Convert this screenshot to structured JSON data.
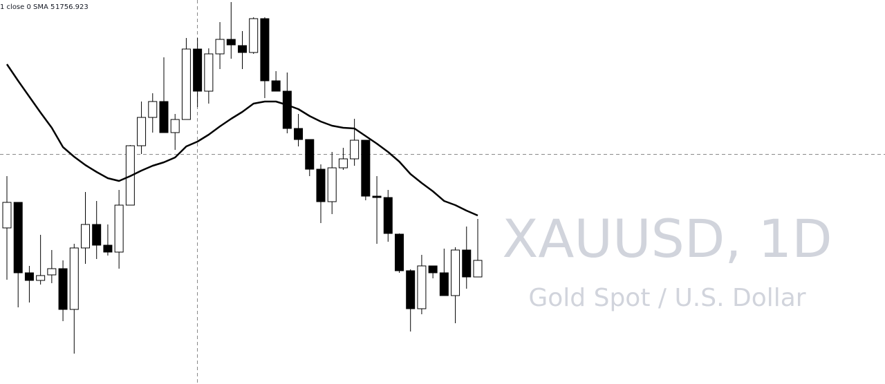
{
  "chart_data": {
    "type": "candlestick",
    "indicator": "1 close 0 SMA 5",
    "symbol": "XAUUSD, 1D",
    "description": "Gold Spot / U.S. Dollar",
    "ylim": [
      1695.92,
      1834.92
    ],
    "up_color": "#ffffff",
    "down_color": "#000000",
    "line_color": "#000000",
    "open": [
      1752.42,
      1761.67,
      1736.17,
      1733.42,
      1735.42,
      1737.67,
      1722.92,
      1745.17,
      1753.67,
      1746.17,
      1743.67,
      1760.67,
      1782.17,
      1792.42,
      1798.17,
      1786.92,
      1791.67,
      1817.17,
      1801.92,
      1815.42,
      1820.67,
      1818.42,
      1815.92,
      1828.17,
      1805.67,
      1801.92,
      1788.42,
      1784.42,
      1773.67,
      1761.92,
      1774.17,
      1777.42,
      1784.17,
      1763.92,
      1763.42,
      1750.17,
      1736.92,
      1723.17,
      1738.67,
      1736.17,
      1727.92,
      1744.42,
      1734.67
    ],
    "high": [
      1771.17,
      1761.67,
      1738.67,
      1749.92,
      1744.42,
      1740.67,
      1746.67,
      1765.42,
      1762.17,
      1753.67,
      1766.17,
      1782.42,
      1798.17,
      1801.17,
      1814.17,
      1793.67,
      1821.17,
      1821.17,
      1817.42,
      1826.92,
      1834.17,
      1823.67,
      1828.67,
      1828.67,
      1809.17,
      1808.67,
      1793.67,
      1784.42,
      1775.42,
      1779.92,
      1781.42,
      1791.92,
      1784.17,
      1771.17,
      1766.17,
      1750.42,
      1737.42,
      1742.67,
      1738.67,
      1744.92,
      1745.42,
      1752.92,
      1755.67
    ],
    "low": [
      1733.67,
      1723.67,
      1725.42,
      1731.92,
      1732.42,
      1718.67,
      1706.92,
      1739.42,
      1741.17,
      1742.42,
      1737.67,
      1760.67,
      1779.17,
      1786.92,
      1786.92,
      1780.67,
      1791.67,
      1796.17,
      1797.42,
      1809.92,
      1813.67,
      1809.92,
      1815.42,
      1799.42,
      1801.92,
      1786.67,
      1781.92,
      1771.17,
      1754.17,
      1757.42,
      1773.42,
      1774.92,
      1762.42,
      1746.67,
      1747.42,
      1736.17,
      1714.92,
      1721.17,
      1734.17,
      1727.92,
      1717.92,
      1730.42,
      1734.67
    ],
    "close": [
      1761.67,
      1736.17,
      1733.42,
      1735.17,
      1737.67,
      1722.92,
      1745.17,
      1753.67,
      1746.17,
      1743.67,
      1760.67,
      1782.17,
      1792.42,
      1798.17,
      1786.92,
      1791.67,
      1817.17,
      1801.92,
      1815.42,
      1820.67,
      1818.67,
      1815.92,
      1828.17,
      1805.67,
      1801.92,
      1788.42,
      1784.42,
      1773.67,
      1761.92,
      1774.17,
      1777.42,
      1784.17,
      1763.92,
      1763.42,
      1750.42,
      1736.92,
      1723.17,
      1738.67,
      1736.17,
      1727.92,
      1744.42,
      1734.67,
      1740.67
    ],
    "sma": {
      "values": [
        1811.67,
        1805.67,
        1799.92,
        1794.17,
        1788.67,
        1781.67,
        1778.17,
        1775.17,
        1772.67,
        1770.42,
        1769.42,
        1771.17,
        1773.17,
        1774.92,
        1776.17,
        1777.92,
        1781.92,
        1783.67,
        1786.17,
        1789.17,
        1791.92,
        1794.42,
        1797.42,
        1798.17,
        1798.17,
        1796.92,
        1795.42,
        1792.92,
        1790.92,
        1789.42,
        1788.67,
        1788.42,
        1785.67,
        1782.92,
        1779.92,
        1776.42,
        1771.92,
        1768.67,
        1765.67,
        1762.17,
        1760.67,
        1758.67,
        1756.923
      ]
    }
  }
}
